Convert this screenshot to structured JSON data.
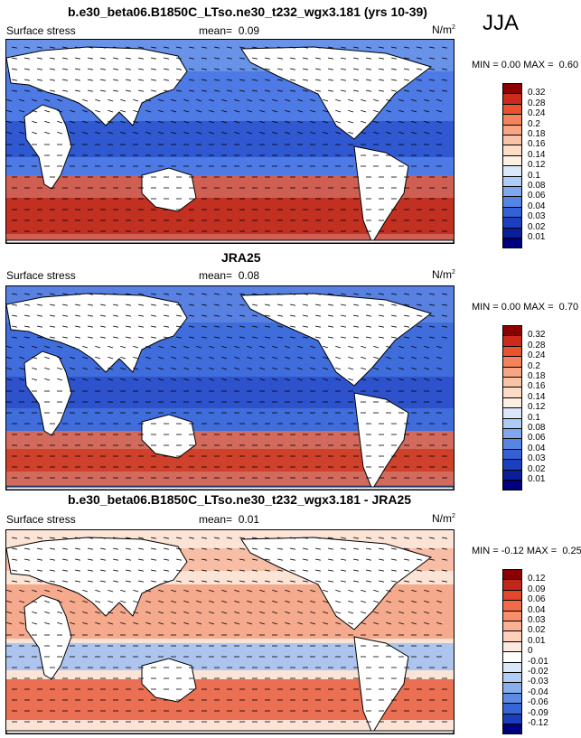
{
  "season": "JJA",
  "panels": [
    {
      "title": "b.e30_beta06.B1850C_LTso.ne30_t232_wgx3.181 (yrs 10-39)",
      "variable": "Surface stress",
      "mean_label": "mean=",
      "mean": "0.09",
      "units_base": "N/m",
      "units_exp": "2",
      "min_label": "MIN =",
      "min": "0.00",
      "max_label": "MAX =",
      "max": "0.60",
      "colorbar": {
        "labels": [
          "0.32",
          "0.28",
          "0.24",
          "0.2",
          "0.18",
          "0.16",
          "0.14",
          "0.12",
          "0.1",
          "0.08",
          "0.06",
          "0.04",
          "0.03",
          "0.02",
          "0.01"
        ],
        "colors": [
          "#8b0000",
          "#cc2a1a",
          "#e9542f",
          "#f4835d",
          "#f7a584",
          "#f9c3a8",
          "#fbdcc6",
          "#fdf0e2",
          "#dbe8fb",
          "#aecdf6",
          "#7ea8ee",
          "#5685e3",
          "#3561d6",
          "#1c3fc0",
          "#0c1f9a",
          "#00007f"
        ]
      }
    },
    {
      "title": "JRA25",
      "variable": "Surface stress",
      "mean_label": "mean=",
      "mean": "0.08",
      "units_base": "N/m",
      "units_exp": "2",
      "min_label": "MIN =",
      "min": "0.00",
      "max_label": "MAX =",
      "max": "0.70",
      "colorbar": {
        "labels": [
          "0.32",
          "0.28",
          "0.24",
          "0.2",
          "0.18",
          "0.16",
          "0.14",
          "0.12",
          "0.1",
          "0.08",
          "0.06",
          "0.04",
          "0.03",
          "0.02",
          "0.01"
        ],
        "colors": [
          "#8b0000",
          "#cc2a1a",
          "#e9542f",
          "#f4835d",
          "#f7a584",
          "#f9c3a8",
          "#fbdcc6",
          "#fdf0e2",
          "#dbe8fb",
          "#aecdf6",
          "#7ea8ee",
          "#5685e3",
          "#3561d6",
          "#1c3fc0",
          "#0c1f9a",
          "#00007f"
        ]
      }
    },
    {
      "title": "b.e30_beta06.B1850C_LTso.ne30_t232_wgx3.181 - JRA25",
      "variable": "Surface stress",
      "mean_label": "mean=",
      "mean": "0.01",
      "units_base": "N/m",
      "units_exp": "2",
      "min_label": "MIN =",
      "min": "-0.12",
      "max_label": "MAX =",
      "max": "0.25",
      "colorbar": {
        "labels": [
          "0.12",
          "0.09",
          "0.06",
          "0.04",
          "0.03",
          "0.02",
          "0.01",
          "0",
          "-0.01",
          "-0.02",
          "-0.03",
          "-0.04",
          "-0.06",
          "-0.09",
          "-0.12"
        ],
        "colors": [
          "#8b0000",
          "#c2271b",
          "#e2482c",
          "#f26a48",
          "#f78f6c",
          "#fab093",
          "#fcd0ba",
          "#fdeadf",
          "#ffffff",
          "#d9e7fb",
          "#b1cdf5",
          "#87afee",
          "#5d8be4",
          "#3865d6",
          "#1a3dbb",
          "#00007f"
        ]
      }
    }
  ]
}
